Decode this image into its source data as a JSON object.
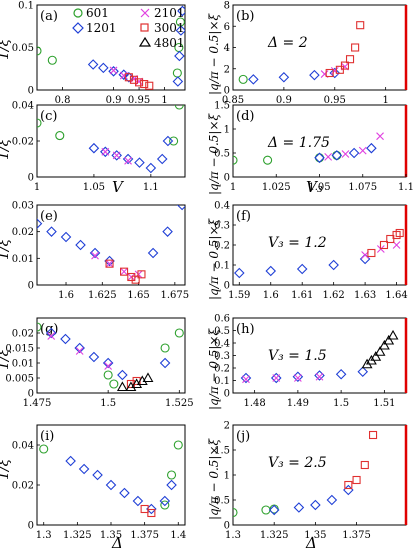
{
  "colors": {
    "601": "#2ca02c",
    "1201": "#1f3fd6",
    "2101": "#e040e0",
    "3001": "#e03030",
    "4801": "#000000",
    "guide_line": "#e00000",
    "fit_blue": "#3050e0",
    "fit_magenta": "#e040e0",
    "fit_green": "#2ca02c"
  },
  "legend": {
    "s601": "601",
    "s1201": "1201",
    "s2101": "2101",
    "s3001": "3001",
    "s4801": "4801"
  },
  "labels": {
    "ylabel_left": "1/ξ",
    "ylabel_right": "|q/π − 0.5|×ξ",
    "xlabel_V": "V",
    "xlabel_V3": "V₃",
    "xlabel_delta": "Δ"
  },
  "chart_data": [
    {
      "id": "a",
      "tag": "(a)",
      "type": "scatter",
      "xlim": [
        0.75,
        1.04
      ],
      "ylim": [
        0,
        0.1
      ],
      "xticks": [
        "0.8",
        "0.9",
        "0.95",
        "1"
      ],
      "yticks": [
        "0",
        "0.05",
        "0.1"
      ],
      "series": [
        {
          "name": "601",
          "x": [
            0.75,
            0.78,
            1.025,
            1.028,
            1.031
          ],
          "y": [
            0.046,
            0.035,
            0.02,
            0.05,
            0.08
          ]
        },
        {
          "name": "1201",
          "x": [
            0.86,
            0.88,
            0.9,
            0.92,
            0.93,
            1.026,
            1.029,
            1.032,
            1.035
          ],
          "y": [
            0.03,
            0.026,
            0.022,
            0.018,
            0.015,
            0.01,
            0.04,
            0.07,
            0.093
          ]
        },
        {
          "name": "2101",
          "x": [
            0.9,
            0.92,
            0.94,
            0.95
          ],
          "y": [
            0.023,
            0.017,
            0.013,
            0.01
          ]
        },
        {
          "name": "3001",
          "x": [
            0.93,
            0.94,
            0.95,
            0.96,
            0.97
          ],
          "y": [
            0.015,
            0.012,
            0.009,
            0.007,
            0.005
          ]
        }
      ]
    },
    {
      "id": "b",
      "tag": "(b)",
      "type": "scatter",
      "xlim": [
        0.85,
        1.02
      ],
      "ylim": [
        0,
        8
      ],
      "xticks": [
        "0.85",
        "0.9",
        "0.95",
        "1"
      ],
      "yticks": [
        "0",
        "2",
        "4",
        "6",
        "8"
      ],
      "annotation": "Δ = 2",
      "series": [
        {
          "name": "601",
          "x": [
            0.86
          ],
          "y": [
            1.0
          ]
        },
        {
          "name": "1201",
          "x": [
            0.87,
            0.9,
            0.93,
            0.95
          ],
          "y": [
            1.0,
            1.2,
            1.4,
            1.6
          ]
        },
        {
          "name": "2101",
          "x": [
            0.94,
            0.95,
            0.96
          ],
          "y": [
            1.5,
            1.8,
            2.2
          ]
        },
        {
          "name": "3001",
          "x": [
            0.945,
            0.955,
            0.96,
            0.965,
            0.97,
            0.975
          ],
          "y": [
            1.6,
            1.9,
            2.3,
            2.9,
            4.0,
            6.1
          ]
        }
      ]
    },
    {
      "id": "c",
      "tag": "(c)",
      "type": "scatter",
      "xlim": [
        1.0,
        1.13
      ],
      "ylim": [
        0,
        0.04
      ],
      "xticks": [
        "1",
        "1.05",
        "1.1"
      ],
      "yticks": [
        "0",
        "0.02",
        "0.04"
      ],
      "xlabel": "V",
      "series": [
        {
          "name": "601",
          "x": [
            1.0,
            1.02,
            1.12,
            1.125
          ],
          "y": [
            0.03,
            0.023,
            0.02,
            0.04
          ]
        },
        {
          "name": "1201",
          "x": [
            1.05,
            1.06,
            1.07,
            1.08,
            1.09,
            1.1,
            1.11,
            1.115
          ],
          "y": [
            0.016,
            0.014,
            0.012,
            0.01,
            0.008,
            0.005,
            0.01,
            0.02
          ]
        },
        {
          "name": "2101",
          "x": [
            1.06,
            1.07,
            1.08
          ],
          "y": [
            0.014,
            0.012,
            0.009
          ]
        }
      ]
    },
    {
      "id": "d",
      "tag": "(d)",
      "type": "scatter",
      "xlim": [
        1.0,
        1.1
      ],
      "ylim": [
        0,
        1.5
      ],
      "xticks": [
        "1",
        "1.025",
        "1.05",
        "1.075",
        "1.1"
      ],
      "yticks": [
        "0",
        "0.5",
        "1",
        "1.5"
      ],
      "annotation": "Δ = 1.75",
      "xlabel": "V₃",
      "series": [
        {
          "name": "601",
          "x": [
            1.0,
            1.02,
            1.05,
            1.06
          ],
          "y": [
            0.35,
            0.35,
            0.4,
            0.45
          ]
        },
        {
          "name": "1201",
          "x": [
            1.05,
            1.06,
            1.07,
            1.08
          ],
          "y": [
            0.4,
            0.45,
            0.5,
            0.6
          ]
        },
        {
          "name": "2101",
          "x": [
            1.055,
            1.065,
            1.075,
            1.085
          ],
          "y": [
            0.42,
            0.48,
            0.55,
            0.85
          ]
        }
      ]
    },
    {
      "id": "e",
      "tag": "(e)",
      "type": "scatter",
      "xlim": [
        1.58,
        1.682
      ],
      "ylim": [
        0,
        0.03
      ],
      "xticks": [
        "1.6",
        "1.625",
        "1.65",
        "1.675"
      ],
      "yticks": [
        "0",
        "0.01",
        "0.02",
        "0.03"
      ],
      "series": [
        {
          "name": "1201",
          "x": [
            1.58,
            1.59,
            1.6,
            1.61,
            1.62,
            1.63,
            1.66,
            1.67,
            1.68
          ],
          "y": [
            0.023,
            0.02,
            0.018,
            0.015,
            0.012,
            0.009,
            0.012,
            0.02,
            0.03
          ]
        },
        {
          "name": "2101",
          "x": [
            1.62,
            1.63,
            1.64,
            1.645,
            1.65
          ],
          "y": [
            0.011,
            0.008,
            0.005,
            0.003,
            0.004
          ]
        },
        {
          "name": "3001",
          "x": [
            1.63,
            1.64,
            1.645,
            1.648,
            1.652
          ],
          "y": [
            0.008,
            0.005,
            0.003,
            0.002,
            0.004
          ]
        }
      ]
    },
    {
      "id": "f",
      "tag": "(f)",
      "type": "scatter",
      "xlim": [
        1.588,
        1.643
      ],
      "ylim": [
        0,
        0.4
      ],
      "xticks": [
        "1.59",
        "1.6",
        "1.61",
        "1.62",
        "1.63",
        "1.64"
      ],
      "yticks": [
        "0",
        "0.1",
        "0.2",
        "0.3",
        "0.4"
      ],
      "annotation": "V₃ = 1.2",
      "series": [
        {
          "name": "1201",
          "x": [
            1.59,
            1.6,
            1.61,
            1.62,
            1.63
          ],
          "y": [
            0.06,
            0.07,
            0.08,
            0.1,
            0.13
          ]
        },
        {
          "name": "2101",
          "x": [
            1.63,
            1.635,
            1.64
          ],
          "y": [
            0.15,
            0.18,
            0.2
          ]
        },
        {
          "name": "3001",
          "x": [
            1.632,
            1.636,
            1.638,
            1.64,
            1.641
          ],
          "y": [
            0.16,
            0.2,
            0.23,
            0.25,
            0.26
          ]
        }
      ]
    },
    {
      "id": "g",
      "tag": "(g)",
      "type": "scatter",
      "xlim": [
        1.475,
        1.527
      ],
      "ylim": [
        0,
        0.025
      ],
      "xticks": [
        "1.475",
        "1.5",
        "1.525"
      ],
      "yticks": [
        "0",
        "0.005",
        "0.01",
        "0.015",
        "0.02"
      ],
      "series": [
        {
          "name": "601",
          "x": [
            1.475,
            1.5,
            1.502,
            1.52,
            1.525
          ],
          "y": [
            0.022,
            0.006,
            0.003,
            0.015,
            0.02
          ]
        },
        {
          "name": "1201",
          "x": [
            1.48,
            1.485,
            1.49,
            1.495,
            1.5,
            1.505,
            1.52
          ],
          "y": [
            0.02,
            0.018,
            0.015,
            0.012,
            0.01,
            0.006,
            0.01
          ]
        },
        {
          "name": "2101",
          "x": [
            1.48,
            1.49,
            1.5
          ],
          "y": [
            0.019,
            0.014,
            0.009
          ]
        },
        {
          "name": "3001",
          "x": [
            1.508,
            1.51
          ],
          "y": [
            0.003,
            0.004
          ]
        },
        {
          "name": "4801",
          "x": [
            1.505,
            1.508,
            1.51,
            1.512,
            1.514
          ],
          "y": [
            0.002,
            0.002,
            0.003,
            0.004,
            0.005
          ]
        }
      ]
    },
    {
      "id": "h",
      "tag": "(h)",
      "type": "scatter",
      "xlim": [
        1.475,
        1.515
      ],
      "ylim": [
        0,
        0.6
      ],
      "xticks": [
        "1.48",
        "1.49",
        "1.5",
        "1.51"
      ],
      "yticks": [
        "0",
        "0.1",
        "0.2",
        "0.3",
        "0.4",
        "0.5",
        "0.6"
      ],
      "annotation": "V₃ = 1.5",
      "series": [
        {
          "name": "1201",
          "x": [
            1.478,
            1.485,
            1.49,
            1.495,
            1.5,
            1.505
          ],
          "y": [
            0.12,
            0.12,
            0.13,
            0.14,
            0.15,
            0.17
          ]
        },
        {
          "name": "2101",
          "x": [
            1.478,
            1.485,
            1.49,
            1.495
          ],
          "y": [
            0.11,
            0.12,
            0.12,
            0.13
          ]
        },
        {
          "name": "4801",
          "x": [
            1.506,
            1.507,
            1.508,
            1.509,
            1.51,
            1.511,
            1.512
          ],
          "y": [
            0.23,
            0.26,
            0.29,
            0.33,
            0.38,
            0.42,
            0.46
          ]
        }
      ]
    },
    {
      "id": "i",
      "tag": "(i)",
      "type": "scatter",
      "xlim": [
        1.295,
        1.405
      ],
      "ylim": [
        0,
        0.05
      ],
      "xticks": [
        "1.3",
        "1.325",
        "1.35",
        "1.375",
        "1.4"
      ],
      "yticks": [
        "0",
        "0.02",
        "0.04"
      ],
      "xlabel": "Δ",
      "series": [
        {
          "name": "601",
          "x": [
            1.3,
            1.39,
            1.395,
            1.4
          ],
          "y": [
            0.038,
            0.01,
            0.025,
            0.04
          ]
        },
        {
          "name": "1201",
          "x": [
            1.32,
            1.33,
            1.34,
            1.35,
            1.36,
            1.37,
            1.38,
            1.39,
            1.395
          ],
          "y": [
            0.032,
            0.028,
            0.025,
            0.02,
            0.016,
            0.012,
            0.008,
            0.012,
            0.02
          ]
        },
        {
          "name": "3001",
          "x": [
            1.375,
            1.38
          ],
          "y": [
            0.008,
            0.006
          ]
        }
      ]
    },
    {
      "id": "j",
      "tag": "(j)",
      "type": "scatter",
      "xlim": [
        1.3,
        1.405
      ],
      "ylim": [
        0,
        2
      ],
      "xticks": [
        "1.3",
        "1.325",
        "1.35",
        "1.375"
      ],
      "yticks": [
        "0",
        "0.5",
        "1",
        "1.5",
        "2"
      ],
      "annotation": "V₃ = 2.5",
      "xlabel": "Δ",
      "series": [
        {
          "name": "601",
          "x": [
            1.3,
            1.32,
            1.325
          ],
          "y": [
            0.25,
            0.3,
            0.32
          ]
        },
        {
          "name": "1201",
          "x": [
            1.325,
            1.34,
            1.35,
            1.36,
            1.37
          ],
          "y": [
            0.3,
            0.35,
            0.4,
            0.5,
            0.7
          ]
        },
        {
          "name": "3001",
          "x": [
            1.37,
            1.375,
            1.38,
            1.385
          ],
          "y": [
            0.8,
            0.9,
            1.2,
            1.8
          ]
        }
      ]
    }
  ]
}
